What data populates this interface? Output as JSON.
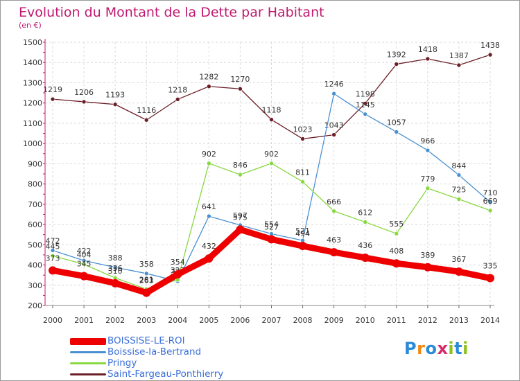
{
  "title": "Evolution du Montant de la Dette par Habitant",
  "subtitle": "(en €)",
  "logo": {
    "letters": [
      "P",
      "r",
      "o",
      "x",
      "i",
      "t",
      "i"
    ],
    "colors": [
      "#2a8ad8",
      "#f08a10",
      "#2a8ad8",
      "#d82a6a",
      "#90c020",
      "#2a8ad8",
      "#90c020"
    ]
  },
  "chart_data": {
    "type": "line",
    "categories": [
      "2000",
      "2001",
      "2002",
      "2003",
      "2004",
      "2005",
      "2006",
      "2007",
      "2008",
      "2009",
      "2010",
      "2011",
      "2012",
      "2013",
      "2014"
    ],
    "ylim": [
      200,
      1500
    ],
    "yticks": [
      200,
      300,
      400,
      500,
      600,
      700,
      800,
      900,
      1000,
      1100,
      1200,
      1300,
      1400,
      1500
    ],
    "grid": true,
    "legend_position": "bottom-left",
    "series": [
      {
        "name": "Saint-Fargeau-Ponthierry",
        "color": "#6b1e26",
        "width": 1.3,
        "values": [
          1219,
          1206,
          1193,
          1116,
          1218,
          1282,
          1270,
          1118,
          1023,
          1043,
          1198,
          1392,
          1418,
          1387,
          1438
        ]
      },
      {
        "name": "Boissise-la-Bertrand",
        "color": "#4a90d0",
        "width": 1.3,
        "values": [
          472,
          422,
          388,
          358,
          320,
          641,
          597,
          554,
          521,
          1246,
          1145,
          1057,
          966,
          844,
          710
        ]
      },
      {
        "name": "Pringy",
        "color": "#88d840",
        "width": 1.3,
        "values": [
          445,
          404,
          336,
          281,
          327,
          902,
          846,
          902,
          811,
          666,
          612,
          555,
          779,
          725,
          669
        ]
      },
      {
        "name": "BOISSISE-LE-ROI",
        "color": "#ee0000",
        "width": 9,
        "values": [
          373,
          345,
          310,
          263,
          354,
          432,
          575,
          527,
          494,
          463,
          436,
          408,
          389,
          367,
          335
        ]
      }
    ]
  }
}
